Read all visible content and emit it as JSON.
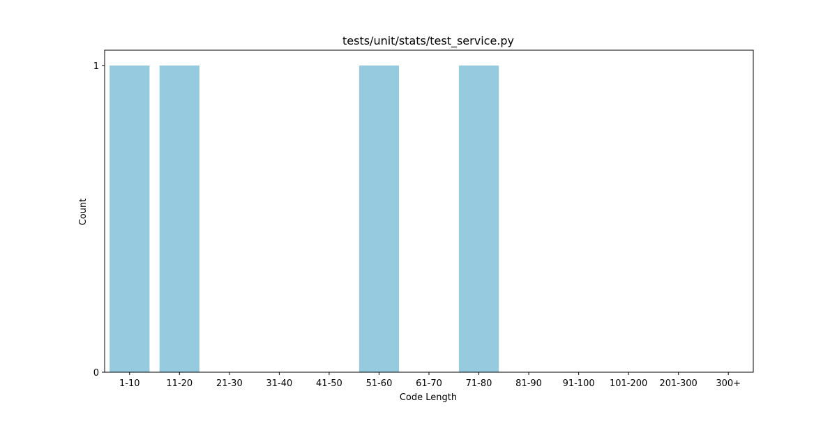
{
  "chart_data": {
    "type": "bar",
    "title": "tests/unit/stats/test_service.py",
    "xlabel": "Code Length",
    "ylabel": "Count",
    "categories": [
      "1-10",
      "11-20",
      "21-30",
      "31-40",
      "41-50",
      "51-60",
      "61-70",
      "71-80",
      "81-90",
      "91-100",
      "101-200",
      "201-300",
      "300+"
    ],
    "values": [
      1,
      1,
      0,
      0,
      0,
      1,
      0,
      1,
      0,
      0,
      0,
      0,
      0
    ],
    "ylim": [
      0,
      1.05
    ],
    "yticks": [
      0,
      1
    ],
    "grid": false,
    "legend": "none",
    "bar_color": "#96cadf",
    "axis_color": "#000000"
  }
}
